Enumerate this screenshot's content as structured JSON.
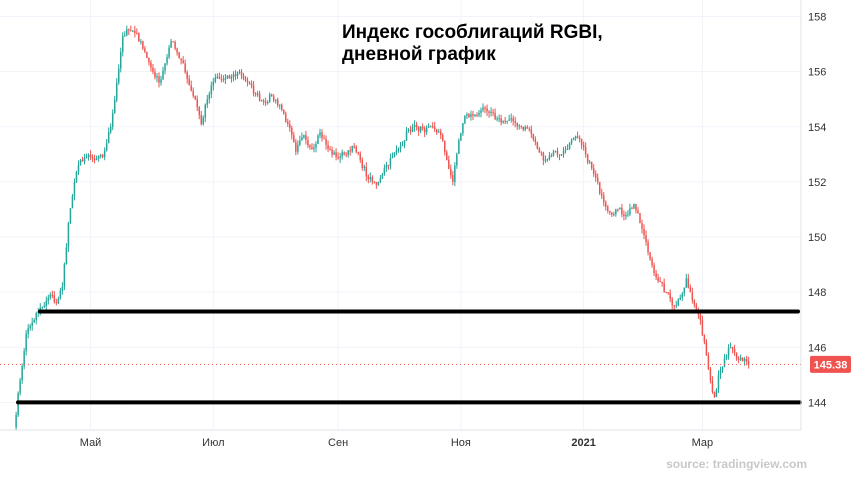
{
  "chart_data": {
    "type": "candlestick",
    "title_line1": "Индекс гособлигаций RGBI,",
    "title_line2": "дневной график",
    "source": "source: tradingview.com",
    "y_ticks": [
      144,
      146,
      148,
      150,
      152,
      154,
      156,
      158
    ],
    "ylim": [
      143.0,
      158.6
    ],
    "x_ticks": [
      {
        "label": "Май",
        "day": 38,
        "bold": false
      },
      {
        "label": "Июл",
        "day": 99,
        "bold": false
      },
      {
        "label": "Сен",
        "day": 161,
        "bold": false
      },
      {
        "label": "Ноя",
        "day": 222,
        "bold": false
      },
      {
        "label": "2021",
        "day": 283,
        "bold": true
      },
      {
        "label": "Мар",
        "day": 342,
        "bold": false
      }
    ],
    "xlim": [
      -7,
      391
    ],
    "last_price": "145.38",
    "last_value": 145.38,
    "support_lines": [
      147.3,
      144.0
    ],
    "colors": {
      "up": "#26a69a",
      "down": "#ef5350",
      "badge": "#ef5350",
      "line": "#000000",
      "grid": "#f0f3fa"
    },
    "close_series": [
      [
        0,
        143.1
      ],
      [
        3,
        144.8
      ],
      [
        6,
        146.5
      ],
      [
        9,
        146.9
      ],
      [
        12,
        147.3
      ],
      [
        15,
        147.5
      ],
      [
        18,
        147.9
      ],
      [
        21,
        147.6
      ],
      [
        24,
        148.2
      ],
      [
        27,
        150.5
      ],
      [
        30,
        152.0
      ],
      [
        33,
        152.8
      ],
      [
        36,
        152.9
      ],
      [
        40,
        152.8
      ],
      [
        44,
        152.9
      ],
      [
        48,
        154.0
      ],
      [
        51,
        155.6
      ],
      [
        54,
        157.3
      ],
      [
        57,
        157.5
      ],
      [
        60,
        157.4
      ],
      [
        63,
        157.1
      ],
      [
        66,
        156.5
      ],
      [
        69,
        156.0
      ],
      [
        72,
        155.6
      ],
      [
        75,
        156.3
      ],
      [
        78,
        157.1
      ],
      [
        81,
        156.7
      ],
      [
        84,
        156.3
      ],
      [
        87,
        155.5
      ],
      [
        90,
        155.0
      ],
      [
        93,
        154.1
      ],
      [
        96,
        155.0
      ],
      [
        100,
        155.8
      ],
      [
        104,
        155.7
      ],
      [
        108,
        155.8
      ],
      [
        112,
        156.0
      ],
      [
        116,
        155.6
      ],
      [
        120,
        155.2
      ],
      [
        124,
        154.9
      ],
      [
        128,
        155.1
      ],
      [
        132,
        154.8
      ],
      [
        136,
        154.1
      ],
      [
        140,
        153.1
      ],
      [
        144,
        153.7
      ],
      [
        148,
        153.2
      ],
      [
        152,
        153.8
      ],
      [
        156,
        153.2
      ],
      [
        160,
        152.9
      ],
      [
        164,
        153.0
      ],
      [
        168,
        153.3
      ],
      [
        172,
        152.8
      ],
      [
        176,
        152.1
      ],
      [
        180,
        151.9
      ],
      [
        184,
        152.5
      ],
      [
        188,
        152.9
      ],
      [
        192,
        153.3
      ],
      [
        196,
        153.9
      ],
      [
        200,
        154.0
      ],
      [
        204,
        153.8
      ],
      [
        208,
        154.0
      ],
      [
        212,
        153.7
      ],
      [
        215,
        152.8
      ],
      [
        218,
        152.0
      ],
      [
        221,
        153.5
      ],
      [
        224,
        154.4
      ],
      [
        228,
        154.4
      ],
      [
        232,
        154.6
      ],
      [
        236,
        154.5
      ],
      [
        240,
        154.3
      ],
      [
        244,
        154.2
      ],
      [
        248,
        154.2
      ],
      [
        252,
        154.0
      ],
      [
        256,
        153.9
      ],
      [
        260,
        153.2
      ],
      [
        264,
        152.8
      ],
      [
        268,
        153.1
      ],
      [
        272,
        153.0
      ],
      [
        276,
        153.4
      ],
      [
        280,
        153.6
      ],
      [
        284,
        153.0
      ],
      [
        288,
        152.3
      ],
      [
        292,
        151.5
      ],
      [
        296,
        150.9
      ],
      [
        300,
        151.0
      ],
      [
        304,
        150.8
      ],
      [
        308,
        151.2
      ],
      [
        312,
        150.3
      ],
      [
        316,
        149.2
      ],
      [
        320,
        148.4
      ],
      [
        324,
        148.0
      ],
      [
        328,
        147.5
      ],
      [
        331,
        147.8
      ],
      [
        334,
        148.5
      ],
      [
        337,
        147.7
      ],
      [
        340,
        147.2
      ],
      [
        343,
        146.2
      ],
      [
        346,
        144.8
      ],
      [
        348,
        144.2
      ],
      [
        350,
        145.0
      ],
      [
        353,
        145.6
      ],
      [
        356,
        146.0
      ],
      [
        359,
        145.6
      ],
      [
        362,
        145.5
      ],
      [
        365,
        145.38
      ]
    ]
  }
}
